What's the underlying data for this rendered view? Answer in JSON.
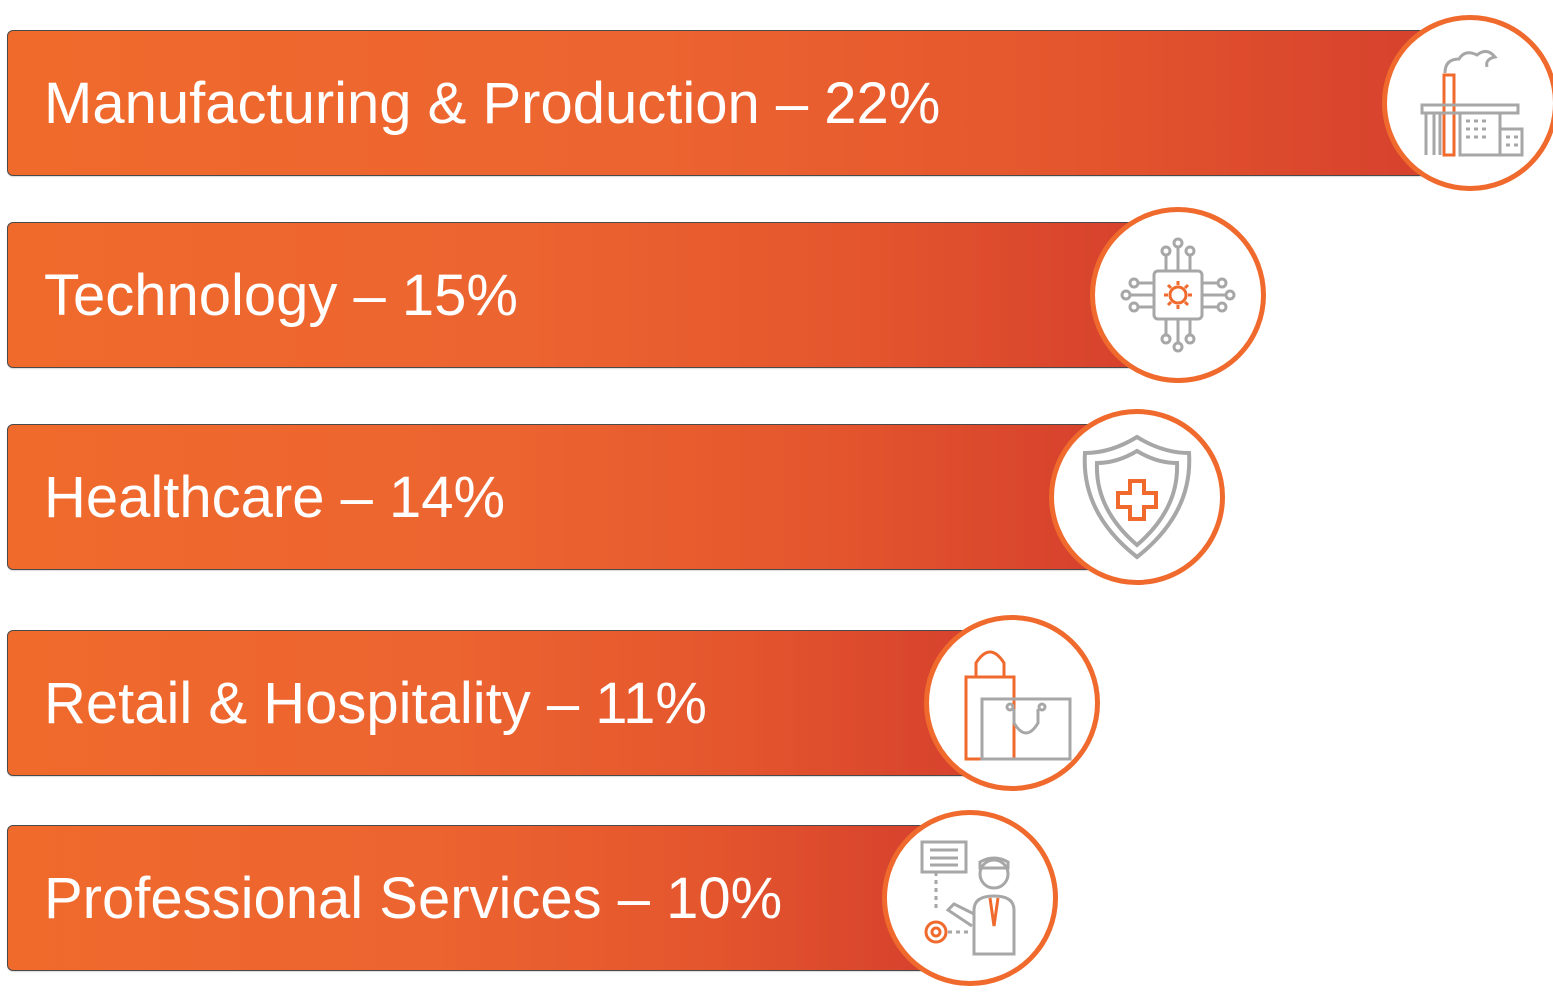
{
  "chart_data": {
    "type": "bar",
    "orientation": "horizontal",
    "categories": [
      "Manufacturing & Production",
      "Technology",
      "Healthcare",
      "Retail & Hospitality",
      "Professional Services"
    ],
    "values": [
      22,
      15,
      14,
      11,
      10
    ],
    "unit": "%",
    "labels": [
      "Manufacturing & Production – 22%",
      "Technology – 15%",
      "Healthcare – 14%",
      "Retail & Hospitality – 11%",
      "Professional Services – 10%"
    ],
    "icons": [
      "factory-icon",
      "chip-icon",
      "shield-cross-icon",
      "shopping-bag-icon",
      "presenter-icon"
    ],
    "colors": {
      "bar_start": "#f06a2c",
      "bar_end": "#d5402d",
      "circle_border": "#ef6a2c",
      "icon_gray": "#a7a7a7",
      "text": "#ffffff"
    }
  }
}
